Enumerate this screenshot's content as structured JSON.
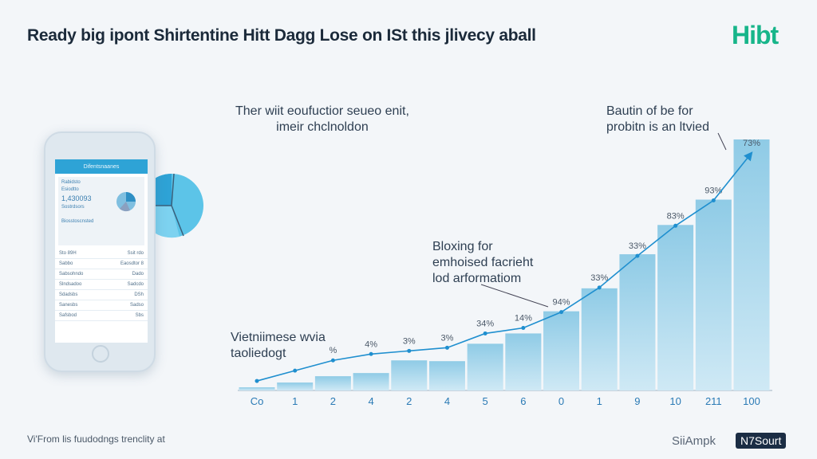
{
  "header": {
    "title": "Ready big ipont Shirtentine Hitt Dagg Lose on ISt this jlivecy aball",
    "logo": "Hibt"
  },
  "annotations": {
    "top_left": [
      "Ther wiit eoufuctior seueo enit,",
      "imeir chclnoldon"
    ],
    "top_right": [
      "Bautin of be for",
      "probitn is an ltvied"
    ],
    "middle": [
      "Bloxing for",
      "emhoised facrieht",
      "lod arformatiom"
    ],
    "left": [
      "Vietniimese wvia",
      "taoliedogt"
    ]
  },
  "phone": {
    "app_title": "Difentsnaanes",
    "card_lines": [
      "Rabidsto",
      "Esiodtto",
      "1,430093",
      "Sostrdsors",
      "Biosstoscnsted"
    ],
    "rows": [
      [
        "Sto 89H",
        "Ssit rdo"
      ],
      [
        "Sabbo",
        "Eaosdtor 8"
      ],
      [
        "Sabsohndo",
        "Dado"
      ],
      [
        "Slndsadoo",
        "Sadcdo"
      ],
      [
        "Sdadsbs",
        "DSh"
      ],
      [
        "Sanesbs",
        "Sadso"
      ],
      [
        "Safsbod",
        "Sbs"
      ]
    ]
  },
  "colors": {
    "bar": "#a9d8ec",
    "bar_top": "#8fcbe6",
    "line": "#1f8fcf",
    "pie": [
      "#2ea3d6",
      "#5cc4e8",
      "#7dd2f0"
    ],
    "logo": "#17b58a"
  },
  "chart_data": {
    "type": "bar",
    "title": "",
    "xlabel": "",
    "ylabel": "",
    "categories": [
      "Co",
      "1",
      "2",
      "4",
      "2",
      "4",
      "5",
      "6",
      "0",
      "1",
      "9",
      "10",
      "211",
      "100"
    ],
    "values": [
      4,
      10,
      18,
      22,
      38,
      37,
      59,
      72,
      100,
      129,
      172,
      209,
      241,
      317
    ],
    "line_values": [
      12,
      25,
      38,
      46,
      50,
      54,
      72,
      79,
      99,
      130,
      170,
      208,
      240,
      300
    ],
    "data_labels": [
      "",
      "",
      "%",
      "4%",
      "3%",
      "3%",
      "34%",
      "14%",
      "94%",
      "33%",
      "33%",
      "83%",
      "93%",
      "73%"
    ],
    "ylim": [
      0,
      320
    ],
    "grid": false
  },
  "footer": {
    "left": "Vi'From lis fuudodngs trenclity at",
    "brand": "SiiAmpk",
    "badge": "N7Sourt"
  }
}
